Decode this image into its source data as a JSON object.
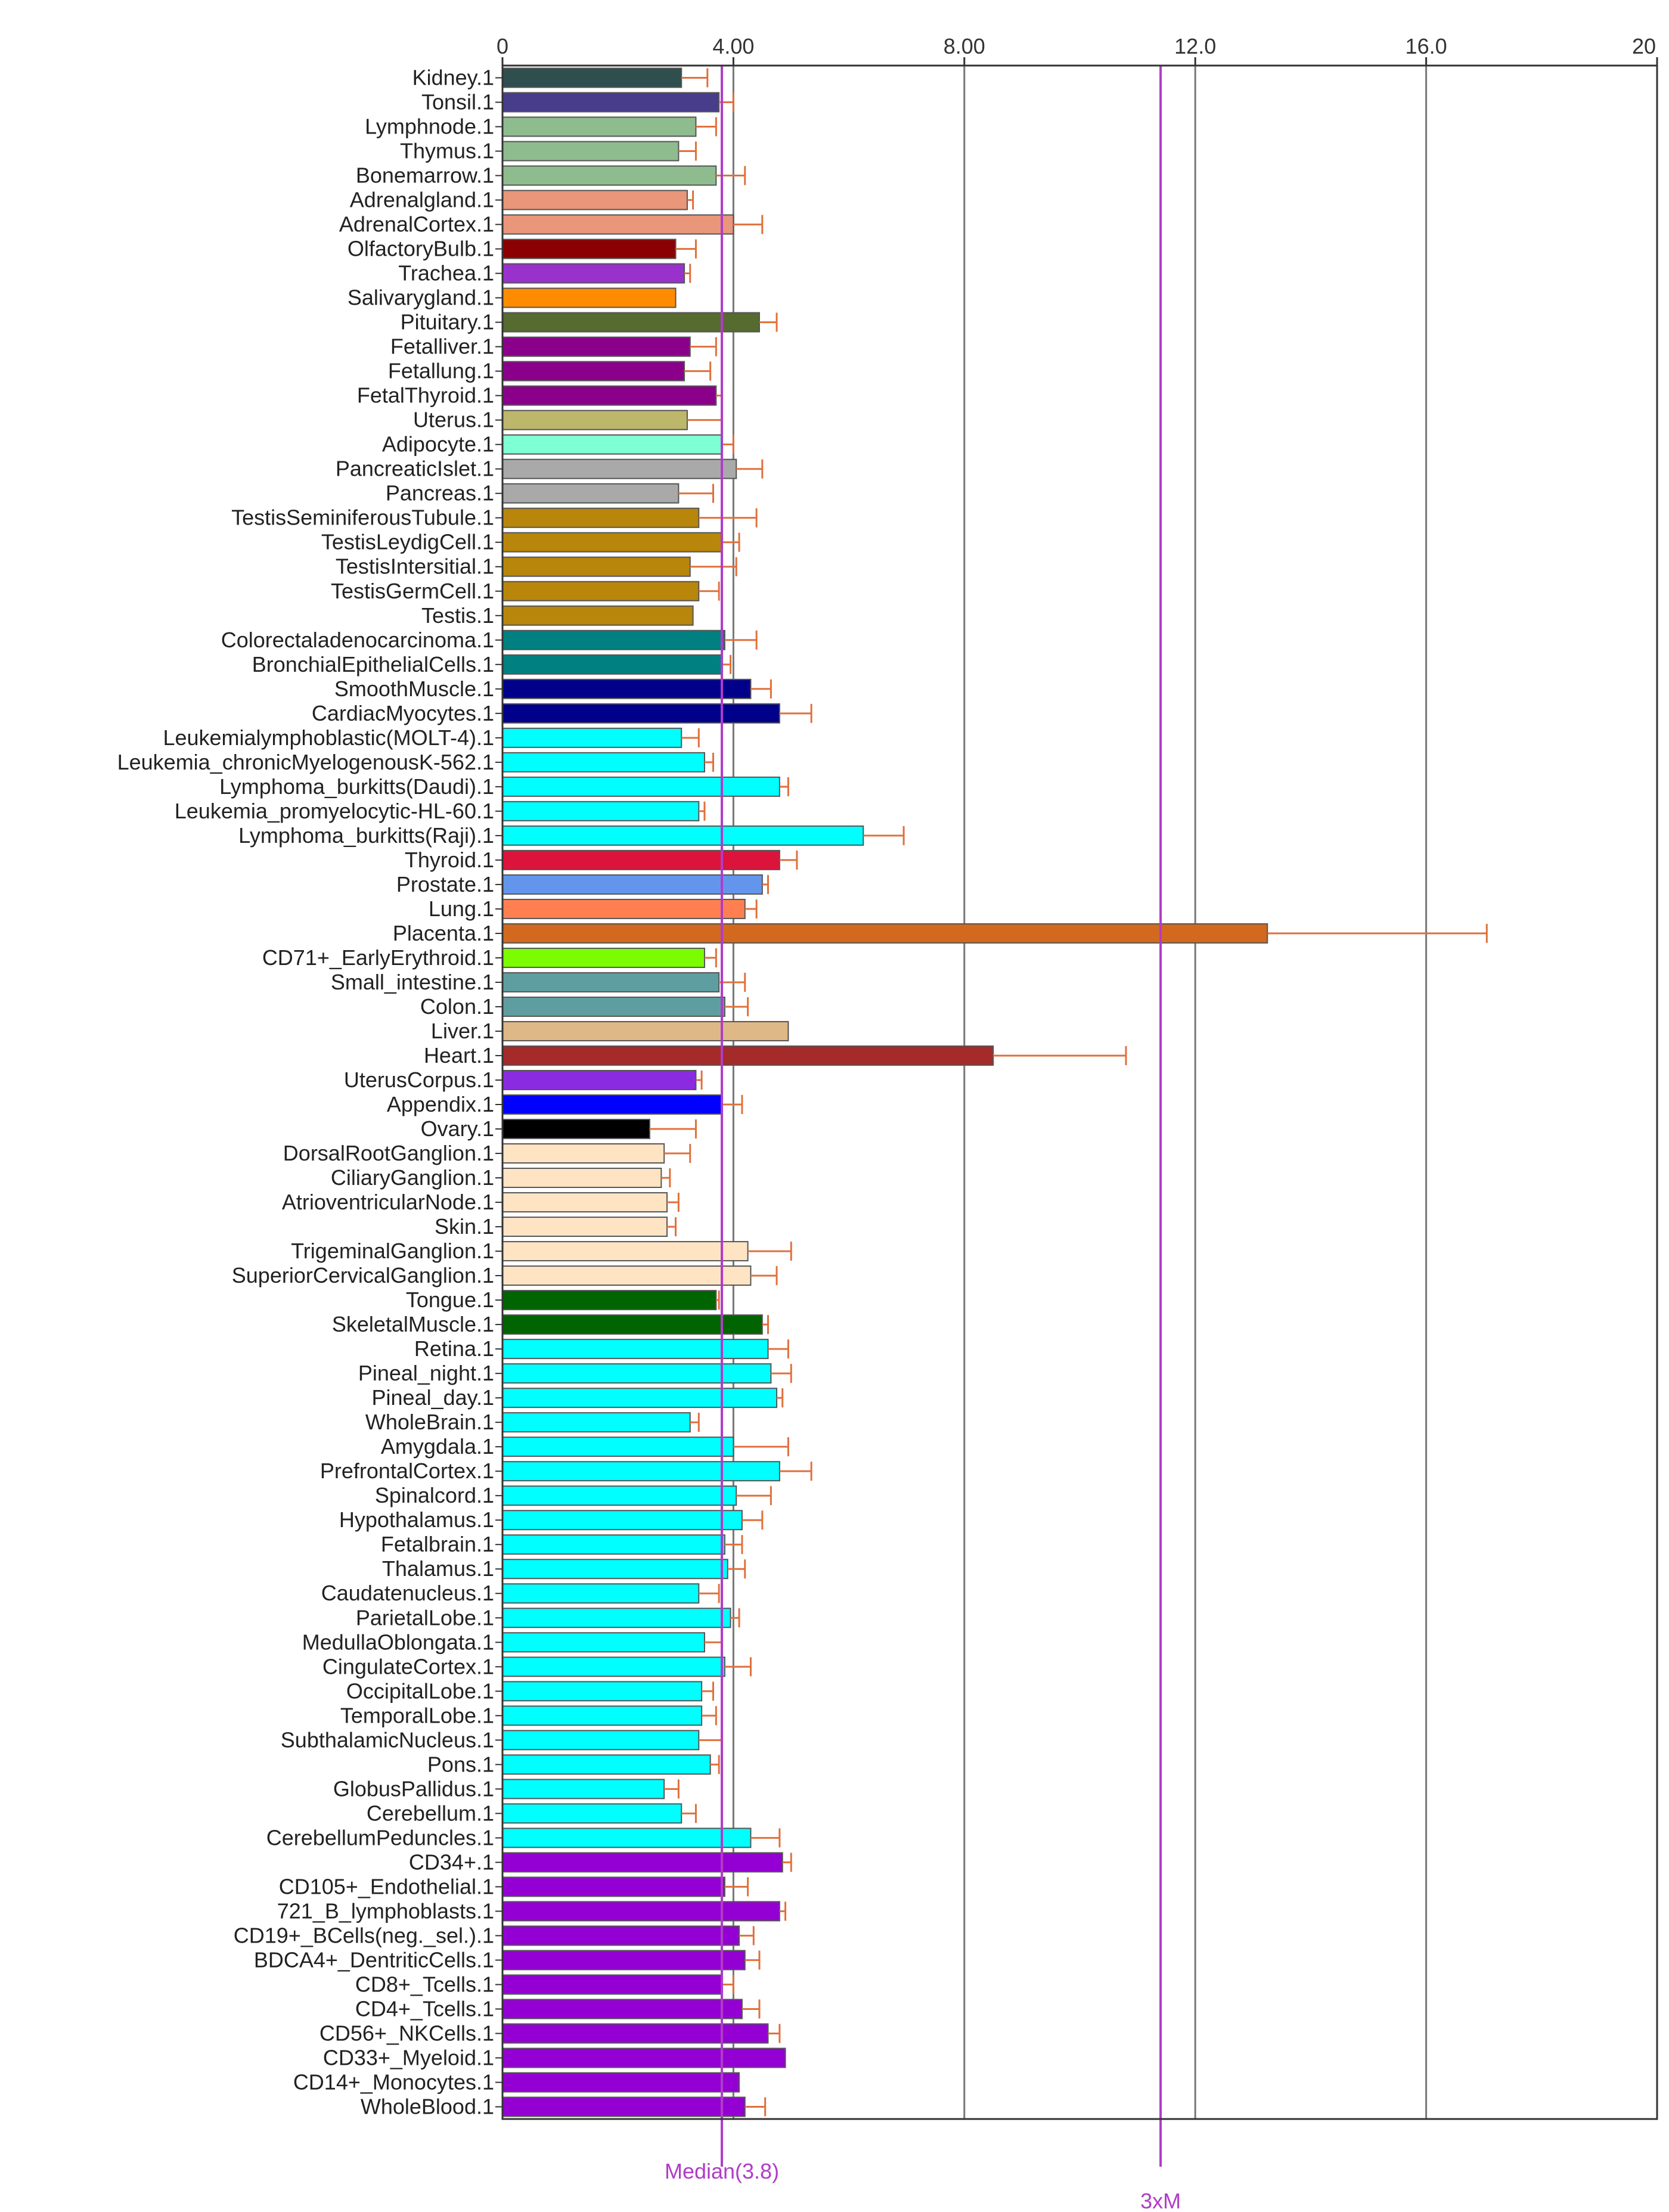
{
  "chart_data": {
    "type": "bar",
    "orientation": "horizontal",
    "xlim": [
      0,
      20
    ],
    "x_ticks": [
      "0",
      "4.00",
      "8.00",
      "12.0",
      "16.0",
      "20"
    ],
    "grid": true,
    "reference_lines": [
      {
        "label": "Median(3.8)",
        "value": 3.8,
        "color": "#b03cc8"
      },
      {
        "label": "3xM",
        "value": 11.4,
        "color": "#b03cc8"
      }
    ],
    "colors": {
      "bar_outline": "#555555",
      "error_bar": "#e0703c",
      "axis": "#333333",
      "grid": "#777777"
    },
    "bars": [
      {
        "label": "Kidney.1",
        "value": 3.1,
        "error": 0.45,
        "color": "#2f4f4f"
      },
      {
        "label": "Tonsil.1",
        "value": 3.75,
        "error": 0.25,
        "color": "#483d8b"
      },
      {
        "label": "Lymphnode.1",
        "value": 3.35,
        "error": 0.35,
        "color": "#8fbc8f"
      },
      {
        "label": "Thymus.1",
        "value": 3.05,
        "error": 0.3,
        "color": "#8fbc8f"
      },
      {
        "label": "Bonemarrow.1",
        "value": 3.7,
        "error": 0.5,
        "color": "#8fbc8f"
      },
      {
        "label": "Adrenalgland.1",
        "value": 3.2,
        "error": 0.1,
        "color": "#e9967a"
      },
      {
        "label": "AdrenalCortex.1",
        "value": 4.0,
        "error": 0.5,
        "color": "#e9967a"
      },
      {
        "label": "OlfactoryBulb.1",
        "value": 3.0,
        "error": 0.35,
        "color": "#8b0000"
      },
      {
        "label": "Trachea.1",
        "value": 3.15,
        "error": 0.1,
        "color": "#9932cc"
      },
      {
        "label": "Salivarygland.1",
        "value": 3.0,
        "error": 0.0,
        "color": "#ff8c00"
      },
      {
        "label": "Pituitary.1",
        "value": 4.45,
        "error": 0.3,
        "color": "#556b2f"
      },
      {
        "label": "Fetalliver.1",
        "value": 3.25,
        "error": 0.45,
        "color": "#8b008b"
      },
      {
        "label": "Fetallung.1",
        "value": 3.15,
        "error": 0.45,
        "color": "#8b008b"
      },
      {
        "label": "FetalThyroid.1",
        "value": 3.7,
        "error": 0.1,
        "color": "#8b008b"
      },
      {
        "label": "Uterus.1",
        "value": 3.2,
        "error": 0.6,
        "color": "#bdb76b"
      },
      {
        "label": "Adipocyte.1",
        "value": 3.8,
        "error": 0.2,
        "color": "#7fffd4"
      },
      {
        "label": "PancreaticIslet.1",
        "value": 4.05,
        "error": 0.45,
        "color": "#a9a9a9"
      },
      {
        "label": "Pancreas.1",
        "value": 3.05,
        "error": 0.6,
        "color": "#a9a9a9"
      },
      {
        "label": "TestisSeminiferousTubule.1",
        "value": 3.4,
        "error": 1.0,
        "color": "#b8860b"
      },
      {
        "label": "TestisLeydigCell.1",
        "value": 3.8,
        "error": 0.3,
        "color": "#b8860b"
      },
      {
        "label": "TestisIntersitial.1",
        "value": 3.25,
        "error": 0.8,
        "color": "#b8860b"
      },
      {
        "label": "TestisGermCell.1",
        "value": 3.4,
        "error": 0.35,
        "color": "#b8860b"
      },
      {
        "label": "Testis.1",
        "value": 3.3,
        "error": 0.0,
        "color": "#b8860b"
      },
      {
        "label": "Colorectaladenocarcinoma.1",
        "value": 3.85,
        "error": 0.55,
        "color": "#008080"
      },
      {
        "label": "BronchialEpithelialCells.1",
        "value": 3.8,
        "error": 0.15,
        "color": "#008080"
      },
      {
        "label": "SmoothMuscle.1",
        "value": 4.3,
        "error": 0.35,
        "color": "#00008b"
      },
      {
        "label": "CardiacMyocytes.1",
        "value": 4.8,
        "error": 0.55,
        "color": "#00008b"
      },
      {
        "label": "Leukemialymphoblastic(MOLT-4).1",
        "value": 3.1,
        "error": 0.3,
        "color": "#00ffff"
      },
      {
        "label": "Leukemia_chronicMyelogenousK-562.1",
        "value": 3.5,
        "error": 0.15,
        "color": "#00ffff"
      },
      {
        "label": "Lymphoma_burkitts(Daudi).1",
        "value": 4.8,
        "error": 0.15,
        "color": "#00ffff"
      },
      {
        "label": "Leukemia_promyelocytic-HL-60.1",
        "value": 3.4,
        "error": 0.1,
        "color": "#00ffff"
      },
      {
        "label": "Lymphoma_burkitts(Raji).1",
        "value": 6.25,
        "error": 0.7,
        "color": "#00ffff"
      },
      {
        "label": "Thyroid.1",
        "value": 4.8,
        "error": 0.3,
        "color": "#dc143c"
      },
      {
        "label": "Prostate.1",
        "value": 4.5,
        "error": 0.1,
        "color": "#6495ed"
      },
      {
        "label": "Lung.1",
        "value": 4.2,
        "error": 0.2,
        "color": "#ff7f50"
      },
      {
        "label": "Placenta.1",
        "value": 13.25,
        "error": 3.8,
        "color": "#d2691e"
      },
      {
        "label": "CD71+_EarlyErythroid.1",
        "value": 3.5,
        "error": 0.2,
        "color": "#7cfc00"
      },
      {
        "label": "Small_intestine.1",
        "value": 3.75,
        "error": 0.45,
        "color": "#5f9ea0"
      },
      {
        "label": "Colon.1",
        "value": 3.85,
        "error": 0.4,
        "color": "#5f9ea0"
      },
      {
        "label": "Liver.1",
        "value": 4.95,
        "error": 0.0,
        "color": "#deb887"
      },
      {
        "label": "Heart.1",
        "value": 8.5,
        "error": 2.3,
        "color": "#a52a2a"
      },
      {
        "label": "UterusCorpus.1",
        "value": 3.35,
        "error": 0.1,
        "color": "#8a2be2"
      },
      {
        "label": "Appendix.1",
        "value": 3.8,
        "error": 0.35,
        "color": "#0000ff"
      },
      {
        "label": "Ovary.1",
        "value": 2.55,
        "error": 0.8,
        "color": "#000000"
      },
      {
        "label": "DorsalRootGanglion.1",
        "value": 2.8,
        "error": 0.45,
        "color": "#ffe4c4"
      },
      {
        "label": "CiliaryGanglion.1",
        "value": 2.75,
        "error": 0.15,
        "color": "#ffe4c4"
      },
      {
        "label": "AtrioventricularNode.1",
        "value": 2.85,
        "error": 0.2,
        "color": "#ffe4c4"
      },
      {
        "label": "Skin.1",
        "value": 2.85,
        "error": 0.15,
        "color": "#ffe4c4"
      },
      {
        "label": "TrigeminalGanglion.1",
        "value": 4.25,
        "error": 0.75,
        "color": "#ffe4c4"
      },
      {
        "label": "SuperiorCervicalGanglion.1",
        "value": 4.3,
        "error": 0.45,
        "color": "#ffe4c4"
      },
      {
        "label": "Tongue.1",
        "value": 3.7,
        "error": 0.05,
        "color": "#006400"
      },
      {
        "label": "SkeletalMuscle.1",
        "value": 4.5,
        "error": 0.1,
        "color": "#006400"
      },
      {
        "label": "Retina.1",
        "value": 4.6,
        "error": 0.35,
        "color": "#00ffff"
      },
      {
        "label": "Pineal_night.1",
        "value": 4.65,
        "error": 0.35,
        "color": "#00ffff"
      },
      {
        "label": "Pineal_day.1",
        "value": 4.75,
        "error": 0.1,
        "color": "#00ffff"
      },
      {
        "label": "WholeBrain.1",
        "value": 3.25,
        "error": 0.15,
        "color": "#00ffff"
      },
      {
        "label": "Amygdala.1",
        "value": 4.0,
        "error": 0.95,
        "color": "#00ffff"
      },
      {
        "label": "PrefrontalCortex.1",
        "value": 4.8,
        "error": 0.55,
        "color": "#00ffff"
      },
      {
        "label": "Spinalcord.1",
        "value": 4.05,
        "error": 0.6,
        "color": "#00ffff"
      },
      {
        "label": "Hypothalamus.1",
        "value": 4.15,
        "error": 0.35,
        "color": "#00ffff"
      },
      {
        "label": "Fetalbrain.1",
        "value": 3.85,
        "error": 0.3,
        "color": "#00ffff"
      },
      {
        "label": "Thalamus.1",
        "value": 3.9,
        "error": 0.3,
        "color": "#00ffff"
      },
      {
        "label": "Caudatenucleus.1",
        "value": 3.4,
        "error": 0.35,
        "color": "#00ffff"
      },
      {
        "label": "ParietalLobe.1",
        "value": 3.95,
        "error": 0.15,
        "color": "#00ffff"
      },
      {
        "label": "MedullaOblongata.1",
        "value": 3.5,
        "error": 0.3,
        "color": "#00ffff"
      },
      {
        "label": "CingulateCortex.1",
        "value": 3.85,
        "error": 0.45,
        "color": "#00ffff"
      },
      {
        "label": "OccipitalLobe.1",
        "value": 3.45,
        "error": 0.2,
        "color": "#00ffff"
      },
      {
        "label": "TemporalLobe.1",
        "value": 3.45,
        "error": 0.25,
        "color": "#00ffff"
      },
      {
        "label": "SubthalamicNucleus.1",
        "value": 3.4,
        "error": 0.4,
        "color": "#00ffff"
      },
      {
        "label": "Pons.1",
        "value": 3.6,
        "error": 0.15,
        "color": "#00ffff"
      },
      {
        "label": "GlobusPallidus.1",
        "value": 2.8,
        "error": 0.25,
        "color": "#00ffff"
      },
      {
        "label": "Cerebellum.1",
        "value": 3.1,
        "error": 0.25,
        "color": "#00ffff"
      },
      {
        "label": "CerebellumPeduncles.1",
        "value": 4.3,
        "error": 0.5,
        "color": "#00ffff"
      },
      {
        "label": "CD34+.1",
        "value": 4.85,
        "error": 0.15,
        "color": "#9400d3"
      },
      {
        "label": "CD105+_Endothelial.1",
        "value": 3.85,
        "error": 0.4,
        "color": "#9400d3"
      },
      {
        "label": "721_B_lymphoblasts.1",
        "value": 4.8,
        "error": 0.1,
        "color": "#9400d3"
      },
      {
        "label": "CD19+_BCells(neg._sel.).1",
        "value": 4.1,
        "error": 0.25,
        "color": "#9400d3"
      },
      {
        "label": "BDCA4+_DentriticCells.1",
        "value": 4.2,
        "error": 0.25,
        "color": "#9400d3"
      },
      {
        "label": "CD8+_Tcells.1",
        "value": 3.8,
        "error": 0.2,
        "color": "#9400d3"
      },
      {
        "label": "CD4+_Tcells.1",
        "value": 4.15,
        "error": 0.3,
        "color": "#9400d3"
      },
      {
        "label": "CD56+_NKCells.1",
        "value": 4.6,
        "error": 0.2,
        "color": "#9400d3"
      },
      {
        "label": "CD33+_Myeloid.1",
        "value": 4.9,
        "error": 0.0,
        "color": "#9400d3"
      },
      {
        "label": "CD14+_Monocytes.1",
        "value": 4.1,
        "error": 0.0,
        "color": "#9400d3"
      },
      {
        "label": "WholeBlood.1",
        "value": 4.2,
        "error": 0.35,
        "color": "#9400d3"
      }
    ]
  }
}
